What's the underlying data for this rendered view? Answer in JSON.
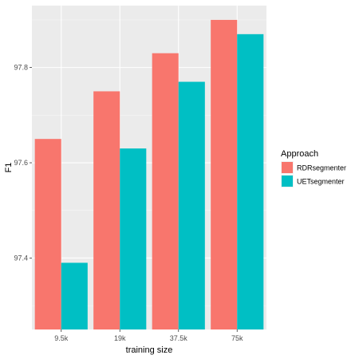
{
  "chart_data": {
    "type": "bar",
    "categories": [
      "9.5k",
      "19k",
      "37.5k",
      "75k"
    ],
    "xlabel": "training size",
    "ylabel": "F1",
    "ylim": [
      97.25,
      97.93
    ],
    "yticks": [
      97.4,
      97.6,
      97.8
    ],
    "ytick_labels": [
      "97.4",
      "97.6",
      "97.8"
    ],
    "grid": true,
    "legend": {
      "title": "Approach",
      "placement": "right"
    },
    "series": [
      {
        "name": "RDRsegmenter",
        "color": "#F8766D",
        "values": [
          97.65,
          97.75,
          97.83,
          97.9
        ]
      },
      {
        "name": "UETsegmenter",
        "color": "#00BFC4",
        "values": [
          97.39,
          97.63,
          97.77,
          97.87
        ]
      }
    ]
  }
}
